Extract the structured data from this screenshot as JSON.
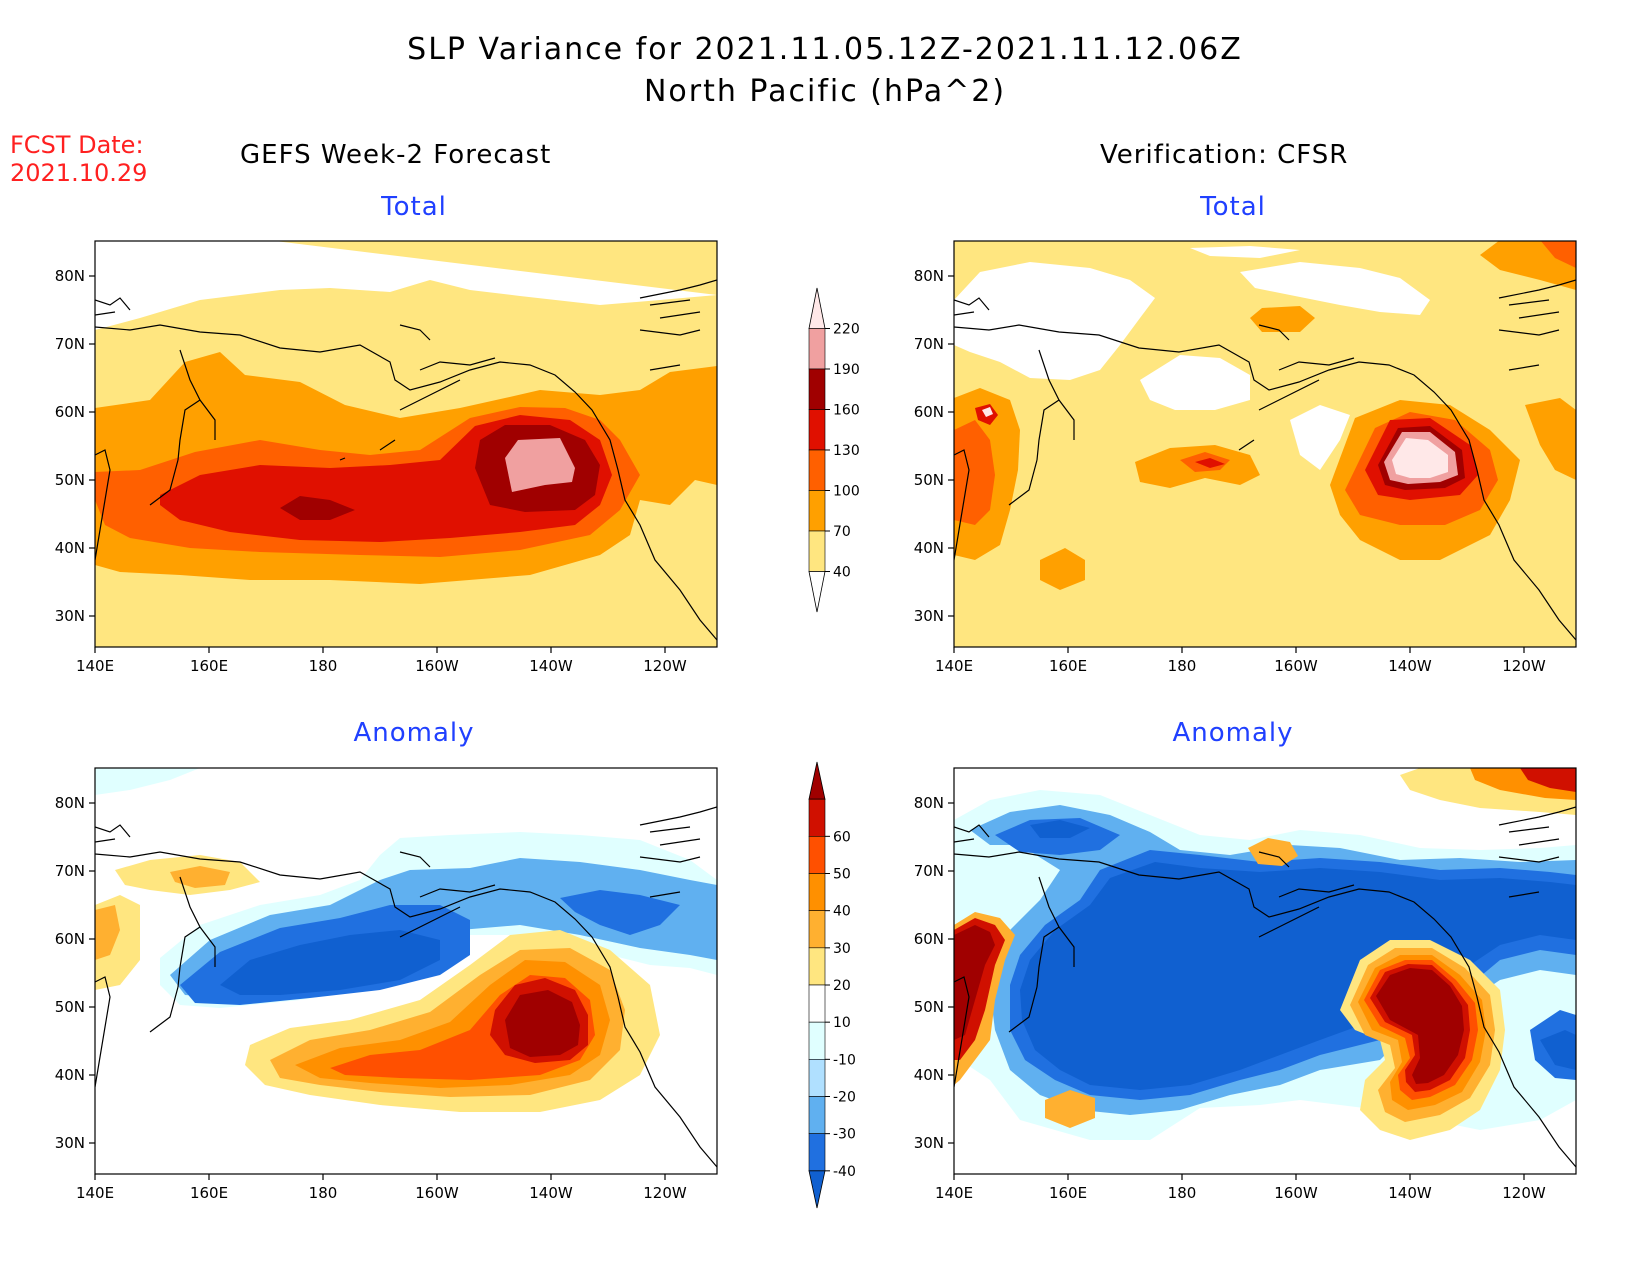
{
  "title": {
    "line1": "SLP Variance for 2021.11.05.12Z-2021.11.12.06Z",
    "line2": "North Pacific (hPa^2)"
  },
  "fcst_date": {
    "label": "FCST Date:",
    "value": "2021.10.29"
  },
  "left_header": "GEFS Week-2 Forecast",
  "right_header": "Verification: CFSR",
  "panels": {
    "fc_total_title": "Total",
    "ver_total_title": "Total",
    "fc_anom_title": "Anomaly",
    "ver_anom_title": "Anomaly"
  },
  "axes": {
    "lat_labels": [
      "80N",
      "70N",
      "60N",
      "50N",
      "40N",
      "30N"
    ],
    "lon_labels": [
      "140E",
      "160E",
      "180",
      "160W",
      "140W",
      "120W"
    ]
  },
  "colorbars": {
    "total": {
      "labels": [
        "40",
        "70",
        "100",
        "130",
        "160",
        "190",
        "220"
      ],
      "colors": [
        "#ffffff",
        "#ffe680",
        "#ffa000",
        "#ff6000",
        "#e01000",
        "#a00000",
        "#f0a0a0",
        "#ffe8e8"
      ]
    },
    "anomaly": {
      "labels": [
        "-40",
        "-30",
        "-20",
        "-10",
        "10",
        "20",
        "30",
        "40",
        "50",
        "60"
      ],
      "colors": [
        "#1060d0",
        "#2070e0",
        "#60b0f0",
        "#b0e0ff",
        "#e0ffff",
        "#ffffff",
        "#ffe680",
        "#ffb030",
        "#ff9000",
        "#ff5000",
        "#d01000",
        "#a00000"
      ]
    }
  },
  "colors": {
    "title_red": "#ff2020",
    "panel_title_blue": "#2040ff"
  }
}
